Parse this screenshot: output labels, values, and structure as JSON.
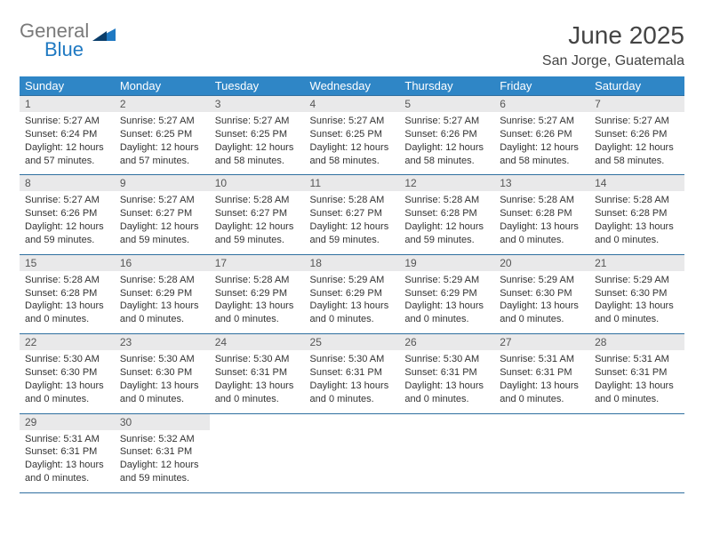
{
  "logo": {
    "line1": "General",
    "line2": "Blue"
  },
  "title": "June 2025",
  "location": "San Jorge, Guatemala",
  "colors": {
    "header_bg": "#2f86c6",
    "header_text": "#ffffff",
    "daynum_bg": "#e9e9ea",
    "rule": "#2f6fa0",
    "logo_gray": "#7a7a7a",
    "logo_blue": "#1f79c2"
  },
  "weekdays": [
    "Sunday",
    "Monday",
    "Tuesday",
    "Wednesday",
    "Thursday",
    "Friday",
    "Saturday"
  ],
  "weeks": [
    [
      {
        "n": "1",
        "sr": "Sunrise: 5:27 AM",
        "ss": "Sunset: 6:24 PM",
        "d1": "Daylight: 12 hours",
        "d2": "and 57 minutes."
      },
      {
        "n": "2",
        "sr": "Sunrise: 5:27 AM",
        "ss": "Sunset: 6:25 PM",
        "d1": "Daylight: 12 hours",
        "d2": "and 57 minutes."
      },
      {
        "n": "3",
        "sr": "Sunrise: 5:27 AM",
        "ss": "Sunset: 6:25 PM",
        "d1": "Daylight: 12 hours",
        "d2": "and 58 minutes."
      },
      {
        "n": "4",
        "sr": "Sunrise: 5:27 AM",
        "ss": "Sunset: 6:25 PM",
        "d1": "Daylight: 12 hours",
        "d2": "and 58 minutes."
      },
      {
        "n": "5",
        "sr": "Sunrise: 5:27 AM",
        "ss": "Sunset: 6:26 PM",
        "d1": "Daylight: 12 hours",
        "d2": "and 58 minutes."
      },
      {
        "n": "6",
        "sr": "Sunrise: 5:27 AM",
        "ss": "Sunset: 6:26 PM",
        "d1": "Daylight: 12 hours",
        "d2": "and 58 minutes."
      },
      {
        "n": "7",
        "sr": "Sunrise: 5:27 AM",
        "ss": "Sunset: 6:26 PM",
        "d1": "Daylight: 12 hours",
        "d2": "and 58 minutes."
      }
    ],
    [
      {
        "n": "8",
        "sr": "Sunrise: 5:27 AM",
        "ss": "Sunset: 6:26 PM",
        "d1": "Daylight: 12 hours",
        "d2": "and 59 minutes."
      },
      {
        "n": "9",
        "sr": "Sunrise: 5:27 AM",
        "ss": "Sunset: 6:27 PM",
        "d1": "Daylight: 12 hours",
        "d2": "and 59 minutes."
      },
      {
        "n": "10",
        "sr": "Sunrise: 5:28 AM",
        "ss": "Sunset: 6:27 PM",
        "d1": "Daylight: 12 hours",
        "d2": "and 59 minutes."
      },
      {
        "n": "11",
        "sr": "Sunrise: 5:28 AM",
        "ss": "Sunset: 6:27 PM",
        "d1": "Daylight: 12 hours",
        "d2": "and 59 minutes."
      },
      {
        "n": "12",
        "sr": "Sunrise: 5:28 AM",
        "ss": "Sunset: 6:28 PM",
        "d1": "Daylight: 12 hours",
        "d2": "and 59 minutes."
      },
      {
        "n": "13",
        "sr": "Sunrise: 5:28 AM",
        "ss": "Sunset: 6:28 PM",
        "d1": "Daylight: 13 hours",
        "d2": "and 0 minutes."
      },
      {
        "n": "14",
        "sr": "Sunrise: 5:28 AM",
        "ss": "Sunset: 6:28 PM",
        "d1": "Daylight: 13 hours",
        "d2": "and 0 minutes."
      }
    ],
    [
      {
        "n": "15",
        "sr": "Sunrise: 5:28 AM",
        "ss": "Sunset: 6:28 PM",
        "d1": "Daylight: 13 hours",
        "d2": "and 0 minutes."
      },
      {
        "n": "16",
        "sr": "Sunrise: 5:28 AM",
        "ss": "Sunset: 6:29 PM",
        "d1": "Daylight: 13 hours",
        "d2": "and 0 minutes."
      },
      {
        "n": "17",
        "sr": "Sunrise: 5:28 AM",
        "ss": "Sunset: 6:29 PM",
        "d1": "Daylight: 13 hours",
        "d2": "and 0 minutes."
      },
      {
        "n": "18",
        "sr": "Sunrise: 5:29 AM",
        "ss": "Sunset: 6:29 PM",
        "d1": "Daylight: 13 hours",
        "d2": "and 0 minutes."
      },
      {
        "n": "19",
        "sr": "Sunrise: 5:29 AM",
        "ss": "Sunset: 6:29 PM",
        "d1": "Daylight: 13 hours",
        "d2": "and 0 minutes."
      },
      {
        "n": "20",
        "sr": "Sunrise: 5:29 AM",
        "ss": "Sunset: 6:30 PM",
        "d1": "Daylight: 13 hours",
        "d2": "and 0 minutes."
      },
      {
        "n": "21",
        "sr": "Sunrise: 5:29 AM",
        "ss": "Sunset: 6:30 PM",
        "d1": "Daylight: 13 hours",
        "d2": "and 0 minutes."
      }
    ],
    [
      {
        "n": "22",
        "sr": "Sunrise: 5:30 AM",
        "ss": "Sunset: 6:30 PM",
        "d1": "Daylight: 13 hours",
        "d2": "and 0 minutes."
      },
      {
        "n": "23",
        "sr": "Sunrise: 5:30 AM",
        "ss": "Sunset: 6:30 PM",
        "d1": "Daylight: 13 hours",
        "d2": "and 0 minutes."
      },
      {
        "n": "24",
        "sr": "Sunrise: 5:30 AM",
        "ss": "Sunset: 6:31 PM",
        "d1": "Daylight: 13 hours",
        "d2": "and 0 minutes."
      },
      {
        "n": "25",
        "sr": "Sunrise: 5:30 AM",
        "ss": "Sunset: 6:31 PM",
        "d1": "Daylight: 13 hours",
        "d2": "and 0 minutes."
      },
      {
        "n": "26",
        "sr": "Sunrise: 5:30 AM",
        "ss": "Sunset: 6:31 PM",
        "d1": "Daylight: 13 hours",
        "d2": "and 0 minutes."
      },
      {
        "n": "27",
        "sr": "Sunrise: 5:31 AM",
        "ss": "Sunset: 6:31 PM",
        "d1": "Daylight: 13 hours",
        "d2": "and 0 minutes."
      },
      {
        "n": "28",
        "sr": "Sunrise: 5:31 AM",
        "ss": "Sunset: 6:31 PM",
        "d1": "Daylight: 13 hours",
        "d2": "and 0 minutes."
      }
    ],
    [
      {
        "n": "29",
        "sr": "Sunrise: 5:31 AM",
        "ss": "Sunset: 6:31 PM",
        "d1": "Daylight: 13 hours",
        "d2": "and 0 minutes."
      },
      {
        "n": "30",
        "sr": "Sunrise: 5:32 AM",
        "ss": "Sunset: 6:31 PM",
        "d1": "Daylight: 12 hours",
        "d2": "and 59 minutes."
      },
      null,
      null,
      null,
      null,
      null
    ]
  ]
}
